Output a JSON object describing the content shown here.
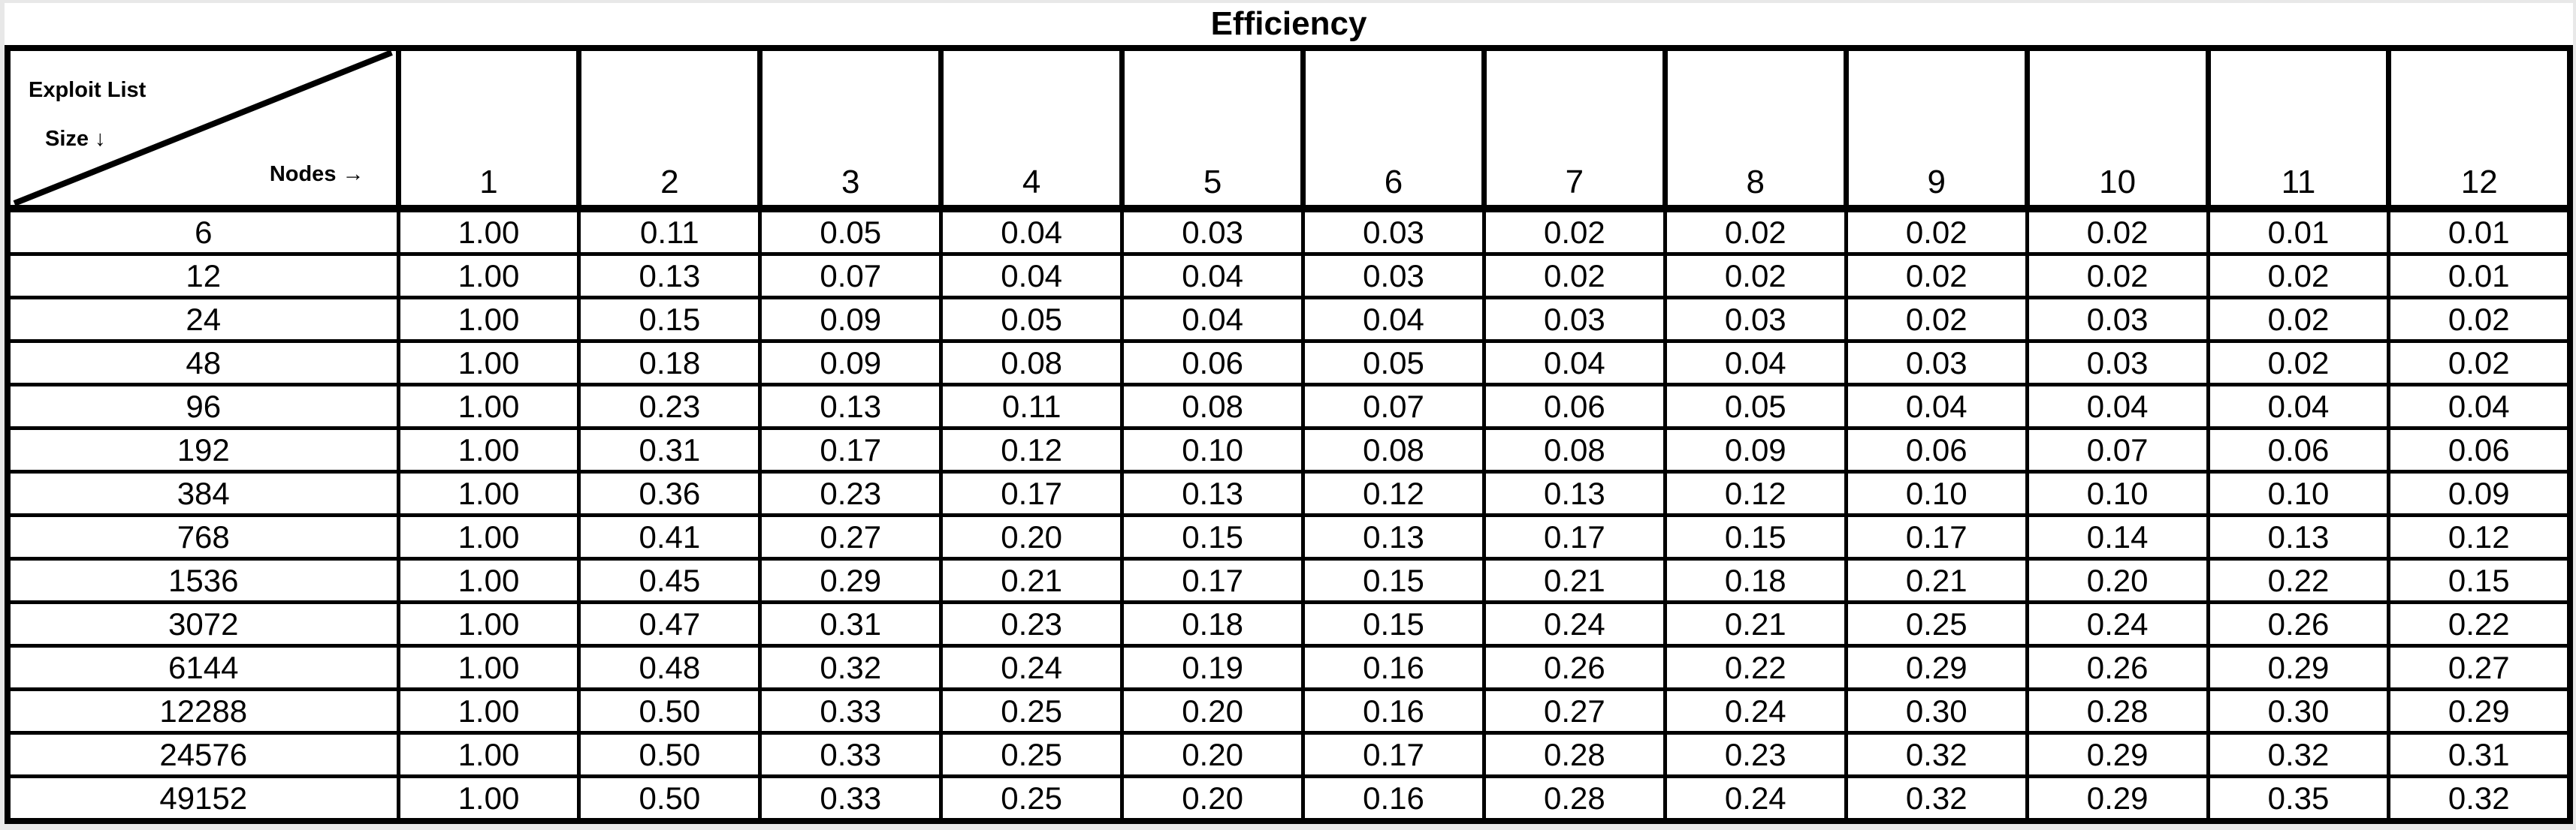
{
  "title": "Efficiency",
  "corner": {
    "row_label_line1": "Exploit List",
    "row_label_line2": "Size ↓",
    "col_label": "Nodes →"
  },
  "chart_data": {
    "type": "table",
    "title": "Efficiency",
    "row_header_label": "Exploit List Size",
    "column_header_label": "Nodes",
    "columns": [
      "1",
      "2",
      "3",
      "4",
      "5",
      "6",
      "7",
      "8",
      "9",
      "10",
      "11",
      "12"
    ],
    "rows": [
      {
        "size": "6",
        "values": [
          "1.00",
          "0.11",
          "0.05",
          "0.04",
          "0.03",
          "0.03",
          "0.02",
          "0.02",
          "0.02",
          "0.02",
          "0.01",
          "0.01"
        ]
      },
      {
        "size": "12",
        "values": [
          "1.00",
          "0.13",
          "0.07",
          "0.04",
          "0.04",
          "0.03",
          "0.02",
          "0.02",
          "0.02",
          "0.02",
          "0.02",
          "0.01"
        ]
      },
      {
        "size": "24",
        "values": [
          "1.00",
          "0.15",
          "0.09",
          "0.05",
          "0.04",
          "0.04",
          "0.03",
          "0.03",
          "0.02",
          "0.03",
          "0.02",
          "0.02"
        ]
      },
      {
        "size": "48",
        "values": [
          "1.00",
          "0.18",
          "0.09",
          "0.08",
          "0.06",
          "0.05",
          "0.04",
          "0.04",
          "0.03",
          "0.03",
          "0.02",
          "0.02"
        ]
      },
      {
        "size": "96",
        "values": [
          "1.00",
          "0.23",
          "0.13",
          "0.11",
          "0.08",
          "0.07",
          "0.06",
          "0.05",
          "0.04",
          "0.04",
          "0.04",
          "0.04"
        ]
      },
      {
        "size": "192",
        "values": [
          "1.00",
          "0.31",
          "0.17",
          "0.12",
          "0.10",
          "0.08",
          "0.08",
          "0.09",
          "0.06",
          "0.07",
          "0.06",
          "0.06"
        ]
      },
      {
        "size": "384",
        "values": [
          "1.00",
          "0.36",
          "0.23",
          "0.17",
          "0.13",
          "0.12",
          "0.13",
          "0.12",
          "0.10",
          "0.10",
          "0.10",
          "0.09"
        ]
      },
      {
        "size": "768",
        "values": [
          "1.00",
          "0.41",
          "0.27",
          "0.20",
          "0.15",
          "0.13",
          "0.17",
          "0.15",
          "0.17",
          "0.14",
          "0.13",
          "0.12"
        ]
      },
      {
        "size": "1536",
        "values": [
          "1.00",
          "0.45",
          "0.29",
          "0.21",
          "0.17",
          "0.15",
          "0.21",
          "0.18",
          "0.21",
          "0.20",
          "0.22",
          "0.15"
        ]
      },
      {
        "size": "3072",
        "values": [
          "1.00",
          "0.47",
          "0.31",
          "0.23",
          "0.18",
          "0.15",
          "0.24",
          "0.21",
          "0.25",
          "0.24",
          "0.26",
          "0.22"
        ]
      },
      {
        "size": "6144",
        "values": [
          "1.00",
          "0.48",
          "0.32",
          "0.24",
          "0.19",
          "0.16",
          "0.26",
          "0.22",
          "0.29",
          "0.26",
          "0.29",
          "0.27"
        ]
      },
      {
        "size": "12288",
        "values": [
          "1.00",
          "0.50",
          "0.33",
          "0.25",
          "0.20",
          "0.16",
          "0.27",
          "0.24",
          "0.30",
          "0.28",
          "0.30",
          "0.29"
        ]
      },
      {
        "size": "24576",
        "values": [
          "1.00",
          "0.50",
          "0.33",
          "0.25",
          "0.20",
          "0.17",
          "0.28",
          "0.23",
          "0.32",
          "0.29",
          "0.32",
          "0.31"
        ]
      },
      {
        "size": "49152",
        "values": [
          "1.00",
          "0.50",
          "0.33",
          "0.25",
          "0.20",
          "0.16",
          "0.28",
          "0.24",
          "0.32",
          "0.29",
          "0.35",
          "0.32"
        ]
      }
    ],
    "layout": {
      "grid": "on",
      "border_color": "#000000",
      "background_color": "#ffffff",
      "frame_color": "#e8e8e8"
    }
  }
}
